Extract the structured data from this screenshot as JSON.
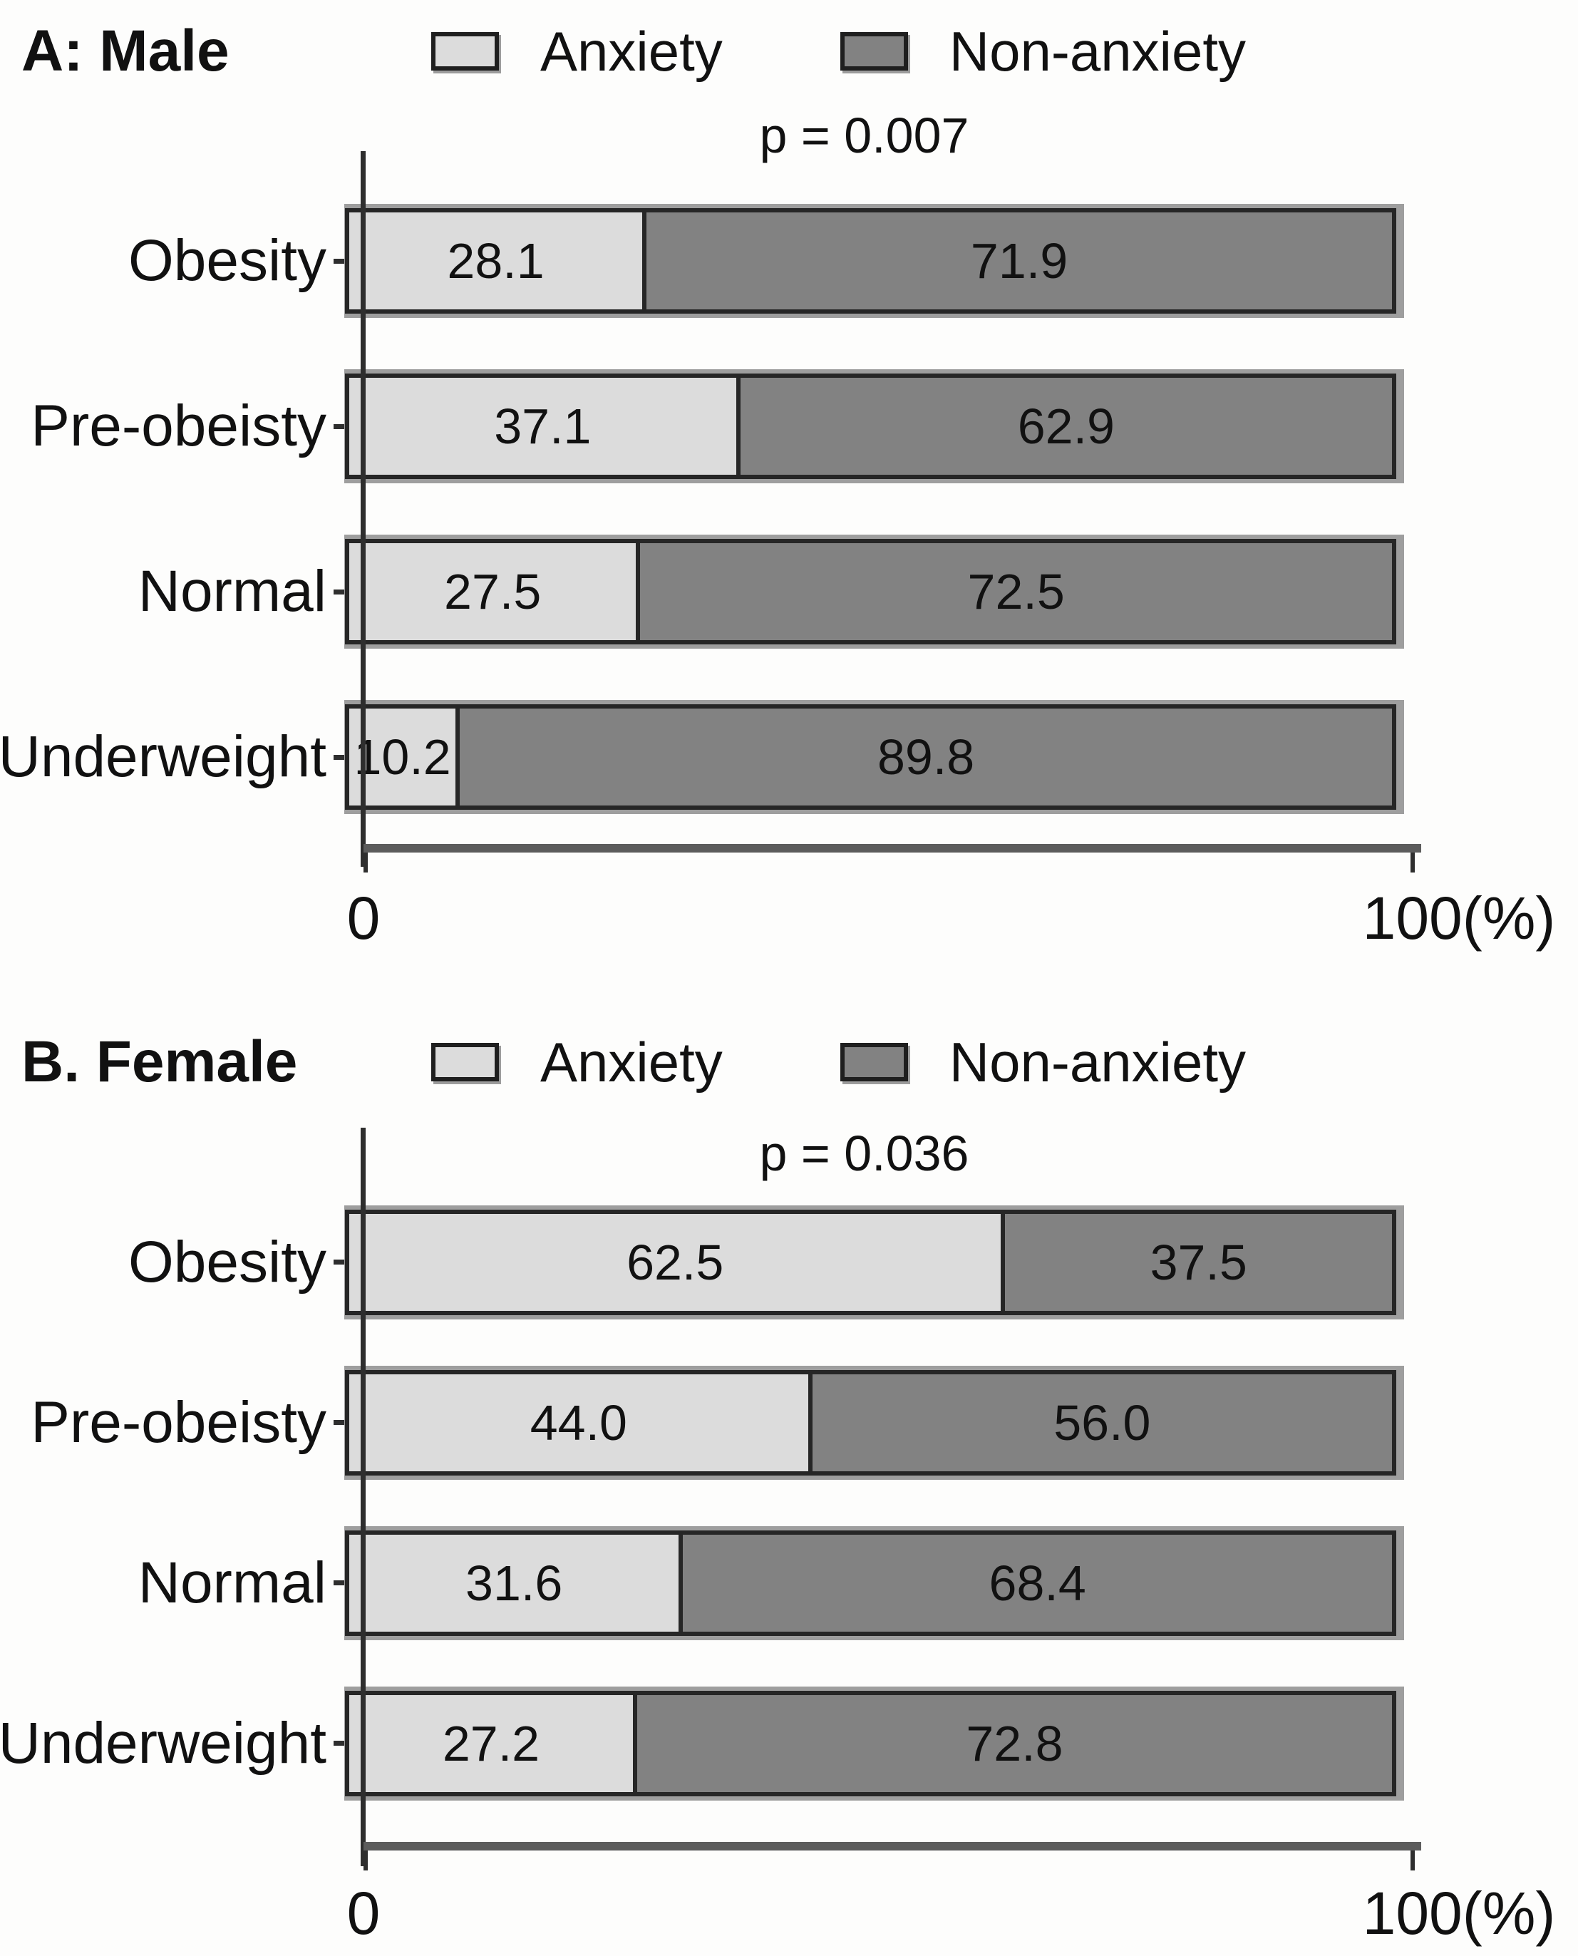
{
  "colors": {
    "anxiety_fill": "#dcdcdc",
    "non_anxiety_fill": "#828282",
    "bar_border": "#262626",
    "bar_shadow": "#9e9e9e",
    "x_axis_line": "#5c5c5c",
    "y_axis_line": "#2e2e2e",
    "text": "#111111",
    "background": "#fdfdfc"
  },
  "chart_data": [
    {
      "type": "bar",
      "orientation": "horizontal",
      "stacked": true,
      "title": "A: Male",
      "p_value_label": "p = 0.007",
      "categories": [
        "Obesity",
        "Pre-obeisty",
        "Normal",
        "Underweight"
      ],
      "series": [
        {
          "name": "Anxiety",
          "values": [
            28.1,
            37.1,
            27.5,
            10.2
          ],
          "labels": [
            "28.1",
            "37.1",
            "27.5",
            "10.2"
          ]
        },
        {
          "name": "Non-anxiety",
          "values": [
            71.9,
            62.9,
            72.5,
            89.8
          ],
          "labels": [
            "71.9",
            "62.9",
            "72.5",
            "89.8"
          ]
        }
      ],
      "xlim": [
        0,
        100
      ],
      "x_tick_labels": [
        "0",
        "100(%)"
      ],
      "legend_position": "top",
      "grid": false
    },
    {
      "type": "bar",
      "orientation": "horizontal",
      "stacked": true,
      "title": "B. Female",
      "p_value_label": "p = 0.036",
      "categories": [
        "Obesity",
        "Pre-obeisty",
        "Normal",
        "Underweight"
      ],
      "series": [
        {
          "name": "Anxiety",
          "values": [
            62.5,
            44.0,
            31.6,
            27.2
          ],
          "labels": [
            "62.5",
            "44.0",
            "31.6",
            "27.2"
          ]
        },
        {
          "name": "Non-anxiety",
          "values": [
            37.5,
            56.0,
            68.4,
            72.8
          ],
          "labels": [
            "37.5",
            "56.0",
            "68.4",
            "72.8"
          ]
        }
      ],
      "xlim": [
        0,
        100
      ],
      "x_tick_labels": [
        "0",
        "100(%)"
      ],
      "legend_position": "top",
      "grid": false
    }
  ]
}
